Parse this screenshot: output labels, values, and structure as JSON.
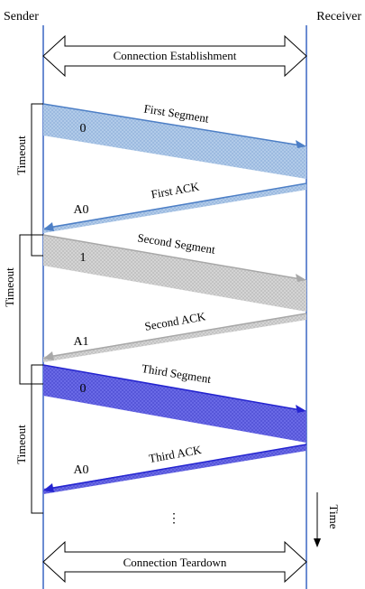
{
  "header": {
    "sender": "Sender",
    "receiver": "Receiver"
  },
  "phases": {
    "establishment": "Connection Establishment",
    "teardown": "Connection Teardown"
  },
  "messages": [
    {
      "label": "First Segment",
      "seq": "0"
    },
    {
      "label": "First ACK",
      "seq": "A0"
    },
    {
      "label": "Second Segment",
      "seq": "1"
    },
    {
      "label": "Second ACK",
      "seq": "A1"
    },
    {
      "label": "Third Segment",
      "seq": "0"
    },
    {
      "label": "Third ACK",
      "seq": "A0"
    }
  ],
  "timeouts": [
    "Timeout",
    "Timeout",
    "Timeout"
  ],
  "time_label": "Time",
  "ellipsis": "⋮"
}
